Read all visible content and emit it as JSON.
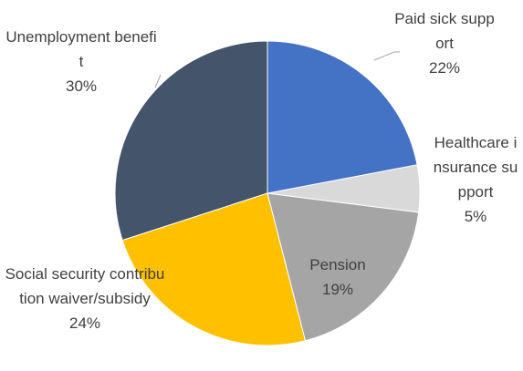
{
  "chart_data": {
    "type": "pie",
    "categories": [
      "Paid sick support",
      "Healthcare insurance support",
      "Pension",
      "Social security contribution waiver/subsidy",
      "Unemployment benefit"
    ],
    "values": [
      22,
      5,
      19,
      24,
      30
    ],
    "value_labels": [
      "22%",
      "5%",
      "19%",
      "24%",
      "30%"
    ],
    "colors": [
      "#4472c4",
      "#d9d9d9",
      "#a5a5a5",
      "#ffc000",
      "#44546a"
    ]
  }
}
